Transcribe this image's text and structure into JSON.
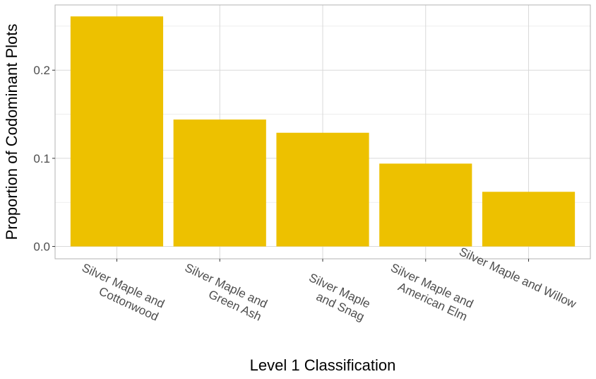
{
  "chart_data": {
    "type": "bar",
    "title": "",
    "xlabel": "Level 1 Classification",
    "ylabel": "Proportion of Codominant Plots",
    "categories": [
      [
        "Silver Maple and",
        "Cottonwood"
      ],
      [
        "Silver Maple and",
        "Green Ash"
      ],
      [
        "Silver Maple",
        "and Snag"
      ],
      [
        "Silver Maple and",
        "American Elm"
      ],
      [
        "Silver Maple and Willow"
      ]
    ],
    "values": [
      0.261,
      0.144,
      0.129,
      0.094,
      0.062
    ],
    "ylim": [
      -0.014,
      0.274
    ],
    "yticks": [
      0.0,
      0.1,
      0.2
    ],
    "ytick_labels": [
      "0.0",
      "0.1",
      "0.2"
    ],
    "y_minor_gridlines": [
      0.05,
      0.15,
      0.25
    ],
    "grid": true,
    "bar_color": "#EDC100",
    "panel_border_color": "#b3b3b3",
    "grid_major_color": "#d9d9d9",
    "grid_minor_color": "#ebebeb"
  }
}
